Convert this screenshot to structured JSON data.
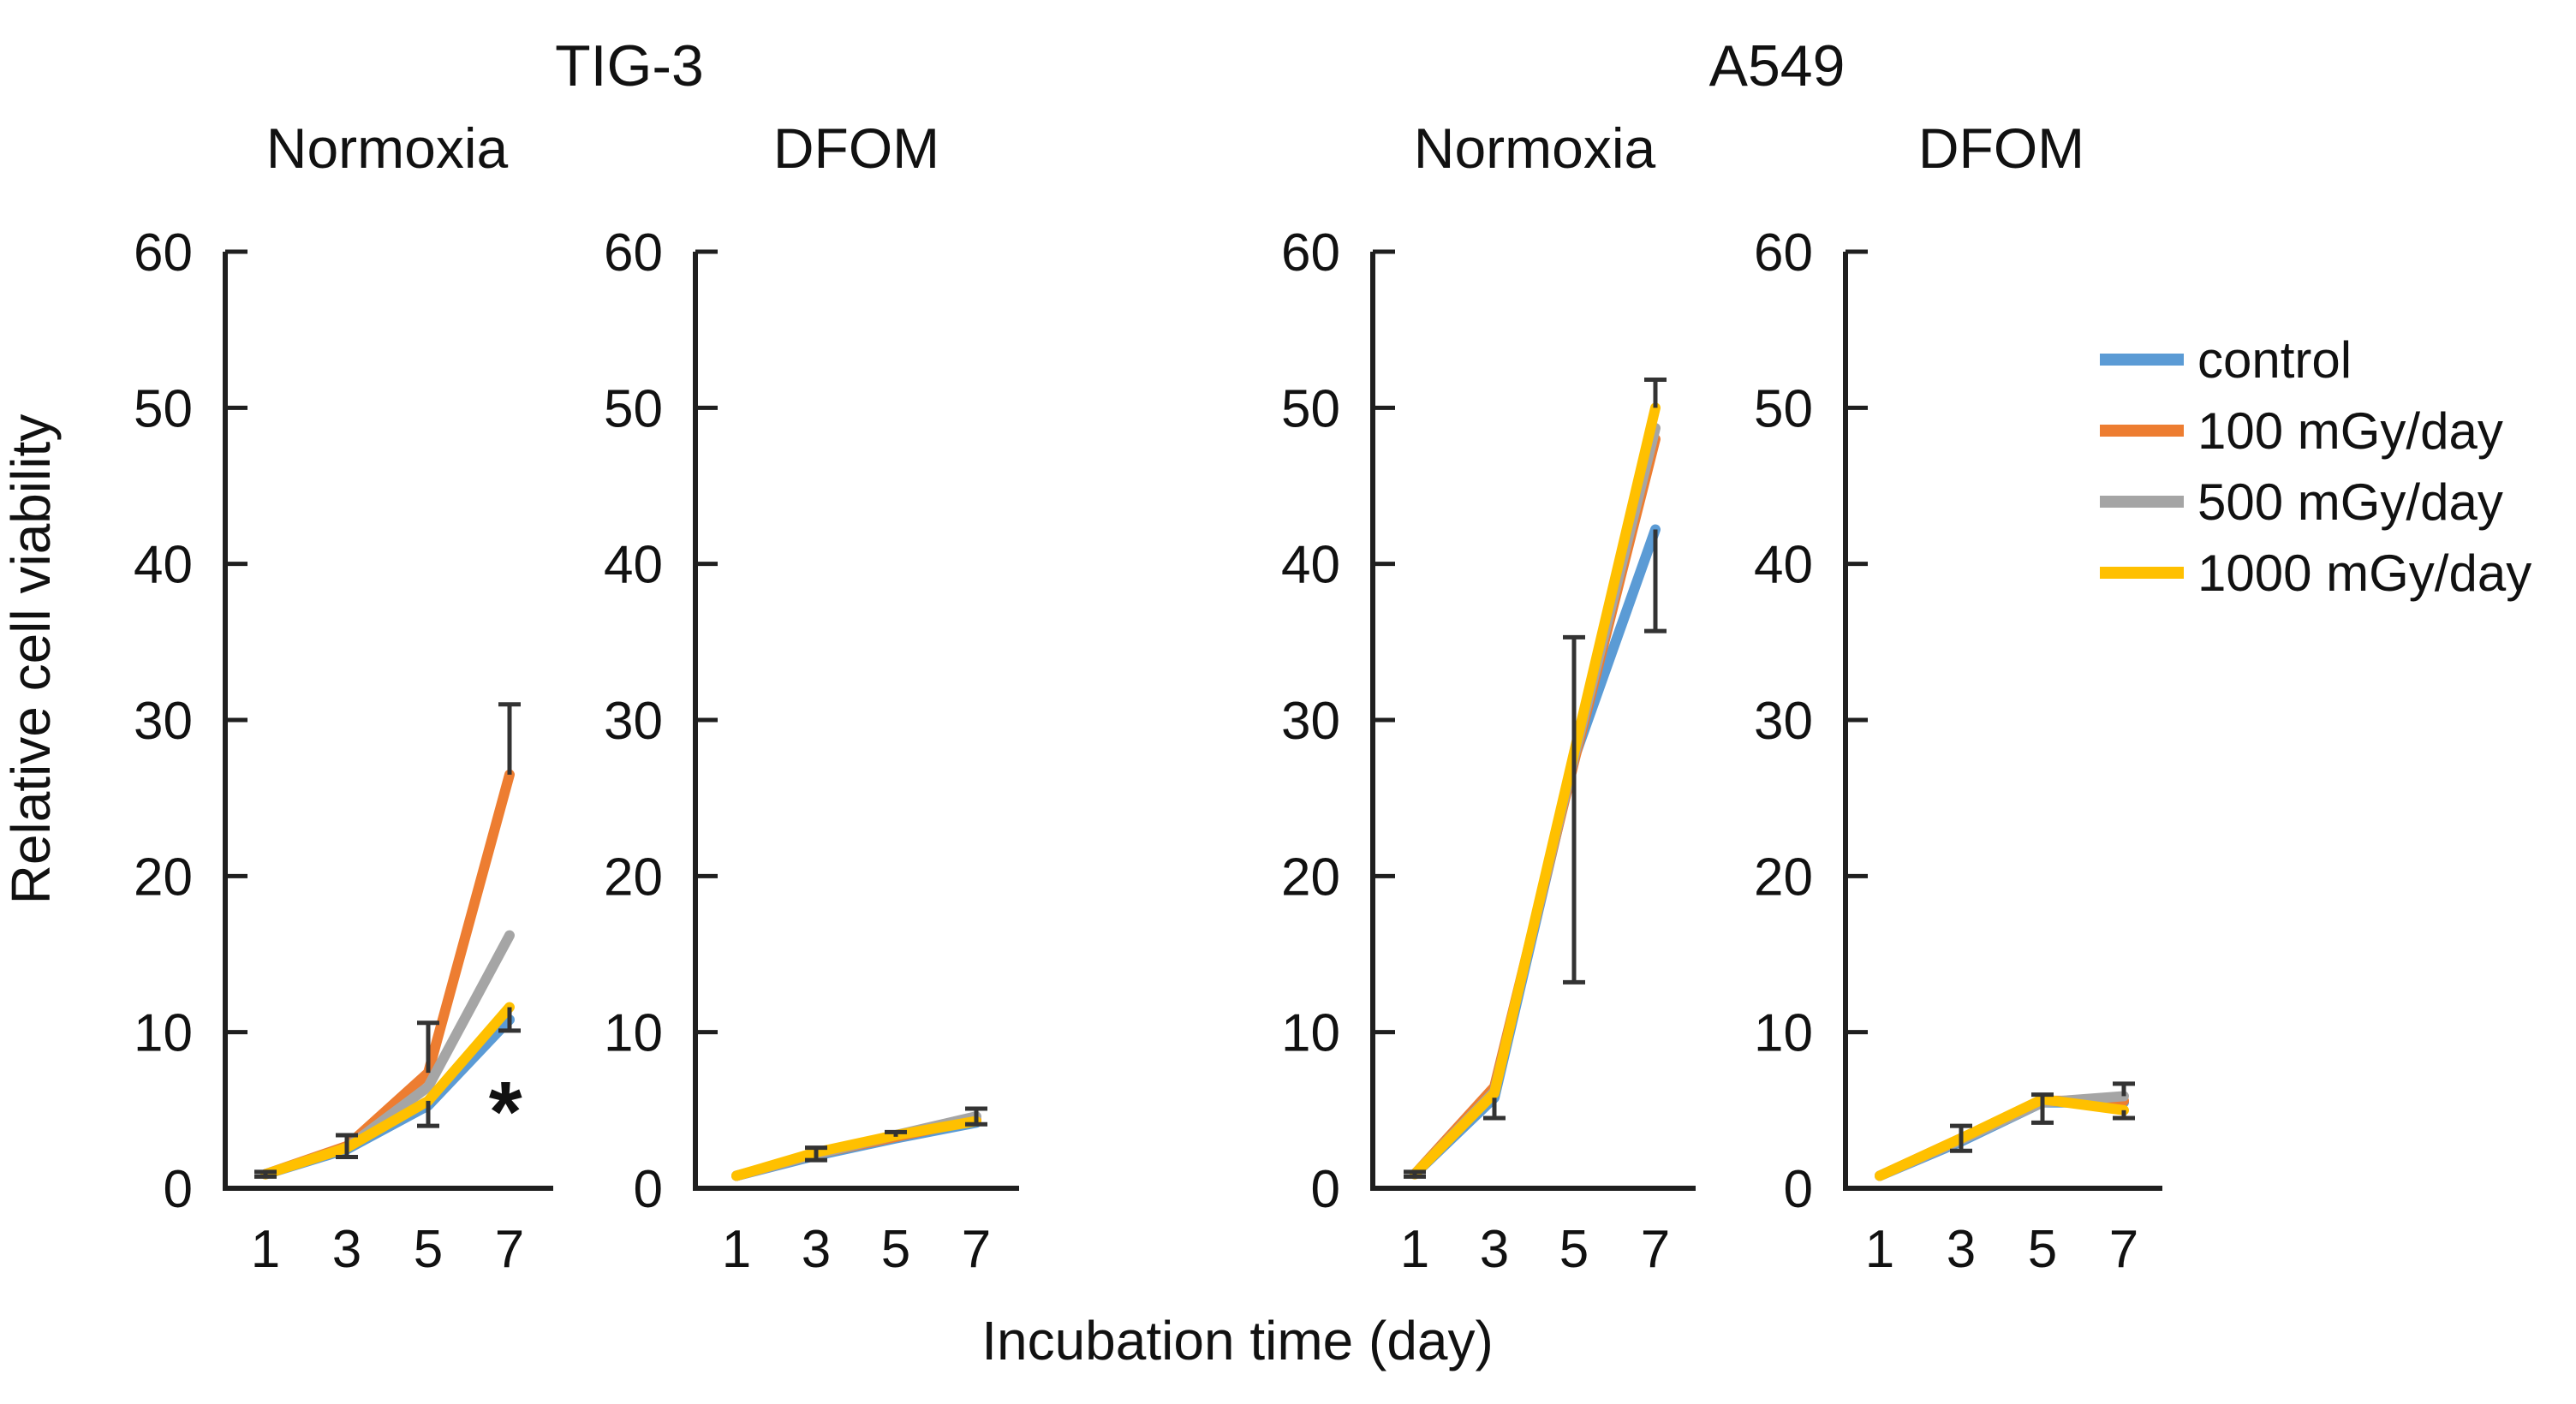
{
  "figure": {
    "background": "#ffffff",
    "axis_color": "#1f1f1f",
    "error_bar_color": "#333333",
    "text_color": "#111111"
  },
  "chart_data": {
    "type": "line",
    "x": [
      1,
      3,
      5,
      7
    ],
    "xlabel": "Incubation time (day)",
    "ylabel": "Relative cell viability",
    "ylim": [
      0,
      60
    ],
    "yticks": [
      0,
      10,
      20,
      30,
      40,
      50,
      60
    ],
    "grid": false,
    "legend_position": "right-top",
    "legend": [
      {
        "key": "control",
        "label": "control",
        "color": "#5B9BD5"
      },
      {
        "key": "d100",
        "label": "100 mGy/day",
        "color": "#ED7D31"
      },
      {
        "key": "d500",
        "label": "500 mGy/day",
        "color": "#A5A5A5"
      },
      {
        "key": "d1000",
        "label": "1000 mGy/day",
        "color": "#FFC000"
      }
    ],
    "groups": [
      {
        "title": "TIG-3"
      },
      {
        "title": "A549"
      }
    ],
    "panels": [
      {
        "group": "TIG-3",
        "subtitle": "Normoxia",
        "series": [
          {
            "key": "control",
            "values": [
              0.9,
              2.5,
              5.3,
              10.8
            ]
          },
          {
            "key": "d100",
            "values": [
              0.9,
              2.7,
              7.4,
              26.5
            ]
          },
          {
            "key": "d500",
            "values": [
              0.9,
              2.6,
              6.5,
              16.2
            ]
          },
          {
            "key": "d1000",
            "values": [
              0.9,
              2.6,
              5.6,
              11.6
            ]
          }
        ],
        "error_bars": [
          {
            "series": "control",
            "point": 0,
            "plus": 0.15,
            "minus": 0.15
          },
          {
            "series": "d100",
            "point": 1,
            "plus": 0.7,
            "minus": 0.7
          },
          {
            "series": "d100",
            "point": 2,
            "plus": 3.2
          },
          {
            "series": "d1000",
            "point": 2,
            "minus": 1.6
          },
          {
            "series": "d100",
            "point": 3,
            "plus": 4.5
          },
          {
            "series": "d1000",
            "point": 3,
            "minus": 1.5
          }
        ],
        "annotations": [
          {
            "text": "*",
            "day": 6.9,
            "value": 5.2
          }
        ]
      },
      {
        "group": "TIG-3",
        "subtitle": "DFOM",
        "series": [
          {
            "key": "control",
            "values": [
              0.8,
              2.1,
              3.2,
              4.2
            ]
          },
          {
            "key": "d100",
            "values": [
              0.8,
              2.2,
              3.3,
              4.4
            ]
          },
          {
            "key": "d500",
            "values": [
              0.8,
              2.2,
              3.4,
              4.6
            ]
          },
          {
            "key": "d1000",
            "values": [
              0.8,
              2.3,
              3.4,
              4.3
            ]
          }
        ],
        "error_bars": [
          {
            "series": "d100",
            "point": 1,
            "plus": 0.4,
            "minus": 0.4
          },
          {
            "series": "d100",
            "point": 2,
            "plus": 0.3
          },
          {
            "series": "d500",
            "point": 3,
            "plus": 0.5,
            "minus": 0.5
          }
        ],
        "annotations": []
      },
      {
        "group": "A549",
        "subtitle": "Normoxia",
        "series": [
          {
            "key": "control",
            "values": [
              0.9,
              5.8,
              27.5,
              42.2
            ]
          },
          {
            "key": "d100",
            "values": [
              0.9,
              6.5,
              27.3,
              48.0
            ]
          },
          {
            "key": "d500",
            "values": [
              0.9,
              6.2,
              27.6,
              48.7
            ]
          },
          {
            "key": "d1000",
            "values": [
              0.9,
              6.1,
              27.9,
              50.0
            ]
          }
        ],
        "error_bars": [
          {
            "series": "control",
            "point": 0,
            "plus": 0.15,
            "minus": 0.15
          },
          {
            "series": "control",
            "point": 1,
            "minus": 1.3
          },
          {
            "series": "control",
            "point": 2,
            "plus": 7.8,
            "minus": 14.3
          },
          {
            "series": "d1000",
            "point": 3,
            "plus": 1.8
          },
          {
            "series": "control",
            "point": 3,
            "minus": 6.5
          }
        ],
        "annotations": []
      },
      {
        "group": "A549",
        "subtitle": "DFOM",
        "series": [
          {
            "key": "control",
            "values": [
              0.8,
              3.0,
              5.5,
              5.5
            ]
          },
          {
            "key": "d100",
            "values": [
              0.8,
              3.2,
              5.6,
              5.6
            ]
          },
          {
            "key": "d500",
            "values": [
              0.8,
              3.1,
              5.5,
              5.9
            ]
          },
          {
            "key": "d1000",
            "values": [
              0.8,
              3.2,
              5.7,
              5.0
            ]
          }
        ],
        "error_bars": [
          {
            "series": "d100",
            "point": 1,
            "plus": 0.8,
            "minus": 0.8
          },
          {
            "series": "control",
            "point": 2,
            "plus": 0.5,
            "minus": 1.3
          },
          {
            "series": "d500",
            "point": 3,
            "plus": 0.8
          },
          {
            "series": "d1000",
            "point": 3,
            "minus": 0.5
          }
        ],
        "annotations": []
      }
    ]
  }
}
